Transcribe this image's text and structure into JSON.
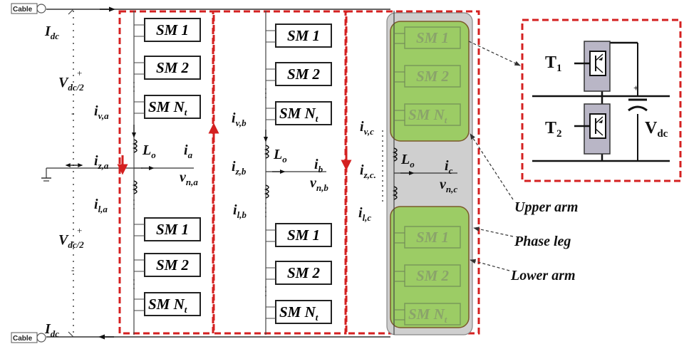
{
  "cable_top": "Cable",
  "cable_bottom": "Cable",
  "dc": {
    "I_top": "I",
    "I_top_sub": "dc",
    "I_bottom": "I",
    "I_bottom_sub": "dc",
    "V_upper": "V",
    "V_upper_sub": "dc/2",
    "V_upper_plus": "+",
    "V_upper_minus": "-",
    "V_lower": "V",
    "V_lower_sub": "dc/2",
    "V_lower_plus": "+",
    "V_lower_minus": "-"
  },
  "phase_a": {
    "upper_modules": [
      "SM 1",
      "SM 2",
      "SM N"
    ],
    "upper_last_sub": "t",
    "lower_modules": [
      "SM 1",
      "SM 2",
      "SM N"
    ],
    "lower_last_sub": "t",
    "iv": "i",
    "iv_sub": "v,a",
    "iz": "i",
    "iz_sub": "z,a",
    "il": "i",
    "il_sub": "l,a",
    "Lo": "L",
    "Lo_sub": "o",
    "ia": "i",
    "ia_sub": "a",
    "vn": "v",
    "vn_sub": "n,a"
  },
  "phase_b": {
    "upper_modules": [
      "SM 1",
      "SM 2",
      "SM N"
    ],
    "upper_last_sub": "t",
    "lower_modules": [
      "SM 1",
      "SM 2",
      "SM N"
    ],
    "lower_last_sub": "t",
    "iv": "i",
    "iv_sub": "v,b",
    "iz": "i",
    "iz_sub": "z,b",
    "il": "i",
    "il_sub": "l,b",
    "Lo": "L",
    "Lo_sub": "o",
    "ib": "i",
    "ib_sub": "b",
    "vn": "v",
    "vn_sub": "n,b"
  },
  "phase_c": {
    "upper_modules": [
      "SM 1",
      "SM 2",
      "SM N"
    ],
    "upper_last_sub": "t",
    "lower_modules": [
      "SM 1",
      "SM 2",
      "SM N"
    ],
    "lower_last_sub": "t",
    "iv": "i",
    "iv_sub": "v,c",
    "iz": "i",
    "iz_sub": "z,c.",
    "il": "i",
    "il_sub": "l,c",
    "Lo": "L",
    "Lo_sub": "o",
    "ic": "i",
    "ic_sub": "c",
    "vn": "v",
    "vn_sub": "n,c"
  },
  "submodule": {
    "T1": "T",
    "T1_sub": "1",
    "T2": "T",
    "T2_sub": "2",
    "V": "V",
    "V_sub": "dc"
  },
  "annotations": {
    "upper_arm": "Upper arm",
    "phase_leg": "Phase leg",
    "lower_arm": "Lower arm"
  },
  "colors": {
    "loop_red": "#d42020",
    "arm_green": "#9ccc65",
    "arm_green_border": "#7a5a2a",
    "leg_gray": "#cfcfcf",
    "switch_gray": "#b9b6c6"
  }
}
